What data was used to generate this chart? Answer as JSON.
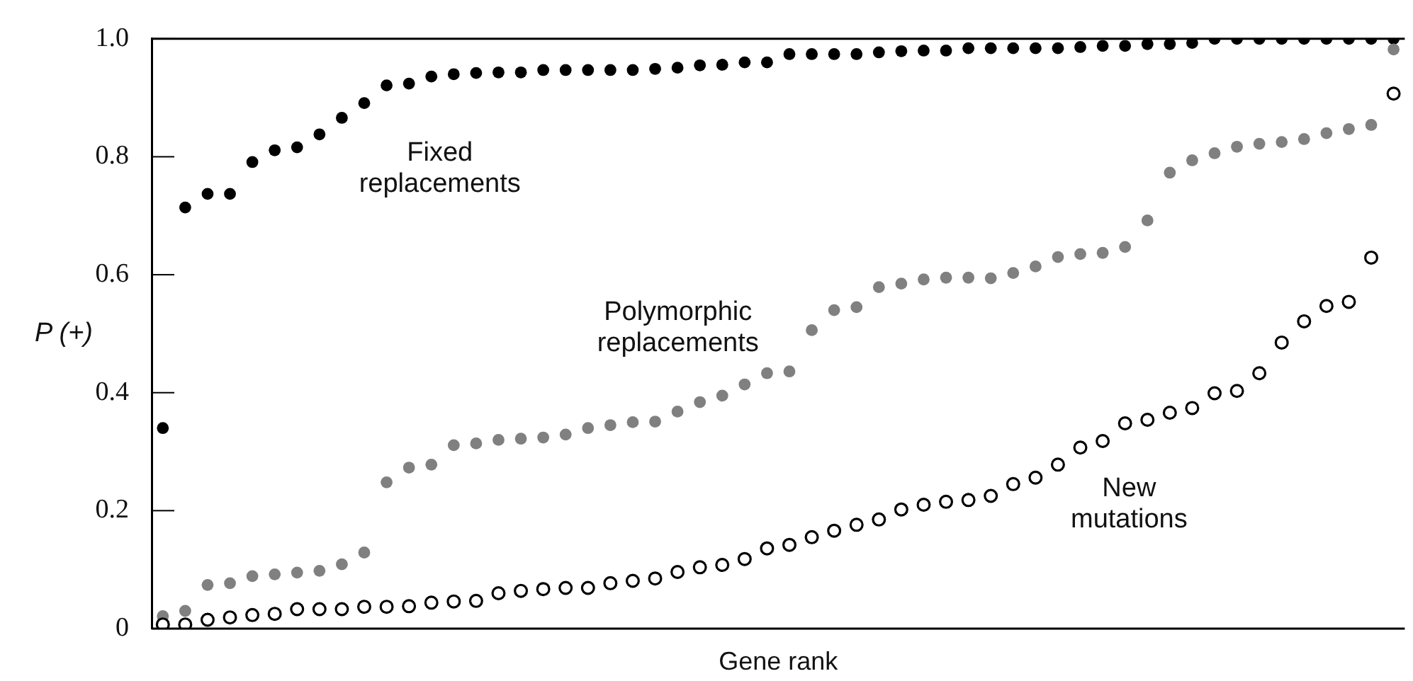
{
  "chart_data": {
    "type": "scatter",
    "xlabel": "Gene rank",
    "ylabel": "P (+)",
    "categories": [
      null,
      null,
      null,
      null,
      null,
      null,
      null,
      null,
      null,
      null,
      null,
      null,
      null,
      null,
      null,
      null,
      null,
      null,
      null,
      null,
      null,
      null,
      null,
      null,
      null,
      null,
      null,
      null,
      null,
      null,
      null,
      null,
      null,
      null,
      null,
      null,
      null,
      null,
      null,
      null,
      null,
      null,
      null,
      null,
      null,
      null,
      null,
      null,
      null,
      null,
      null,
      null,
      null,
      null,
      null,
      null
    ],
    "series": [
      {
        "name": "Fixed replacements",
        "color": "#000000",
        "values": [
          0.34,
          0.714,
          0.737,
          0.737,
          0.791,
          0.811,
          0.816,
          0.838,
          0.866,
          0.891,
          0.921,
          0.924,
          0.936,
          0.94,
          0.942,
          0.943,
          0.943,
          0.947,
          0.947,
          0.947,
          0.947,
          0.947,
          0.949,
          0.951,
          0.955,
          0.956,
          0.96,
          0.96,
          0.974,
          0.974,
          0.974,
          0.974,
          0.977,
          0.979,
          0.98,
          0.98,
          0.984,
          0.984,
          0.984,
          0.984,
          0.984,
          0.986,
          0.988,
          0.988,
          0.991,
          0.991,
          0.993,
          1,
          1,
          1,
          1,
          1,
          1,
          1,
          1,
          1
        ]
      },
      {
        "name": "Polymorphic replacements",
        "color": "#808080",
        "values": [
          0.021,
          0.03,
          0.074,
          0.077,
          0.089,
          0.092,
          0.095,
          0.098,
          0.109,
          0.129,
          0.248,
          0.273,
          0.278,
          0.311,
          0.314,
          0.32,
          0.322,
          0.324,
          0.329,
          0.34,
          0.345,
          0.35,
          0.351,
          0.368,
          0.384,
          0.395,
          0.414,
          0.433,
          0.436,
          0.506,
          0.54,
          0.545,
          0.579,
          0.585,
          0.592,
          0.595,
          0.595,
          0.594,
          0.603,
          0.614,
          0.63,
          0.635,
          0.637,
          0.647,
          0.692,
          0.773,
          0.794,
          0.806,
          0.817,
          0.822,
          0.825,
          0.83,
          0.84,
          0.847,
          0.854,
          0.982
        ]
      },
      {
        "name": "New mutations",
        "color": "#000000",
        "marker": "circle-open",
        "values": [
          0.007,
          0.007,
          0.015,
          0.019,
          0.023,
          0.025,
          0.033,
          0.033,
          0.033,
          0.037,
          0.037,
          0.038,
          0.044,
          0.046,
          0.047,
          0.06,
          0.064,
          0.067,
          0.069,
          0.069,
          0.077,
          0.081,
          0.085,
          0.096,
          0.104,
          0.108,
          0.118,
          0.136,
          0.142,
          0.155,
          0.166,
          0.176,
          0.185,
          0.202,
          0.21,
          0.215,
          0.218,
          0.225,
          0.245,
          0.256,
          0.278,
          0.307,
          0.318,
          0.348,
          0.354,
          0.366,
          0.374,
          0.399,
          0.403,
          0.433,
          0.485,
          0.521,
          0.547,
          0.554,
          0.629,
          0.907
        ]
      }
    ],
    "ylim": [
      0,
      1
    ],
    "yticks": [
      0,
      0.2,
      0.4,
      0.6,
      0.8,
      {
        "value": 1,
        "label": "1.0"
      }
    ],
    "marker": "circle",
    "grid": false,
    "legend": false,
    "tick_labels": "y"
  }
}
